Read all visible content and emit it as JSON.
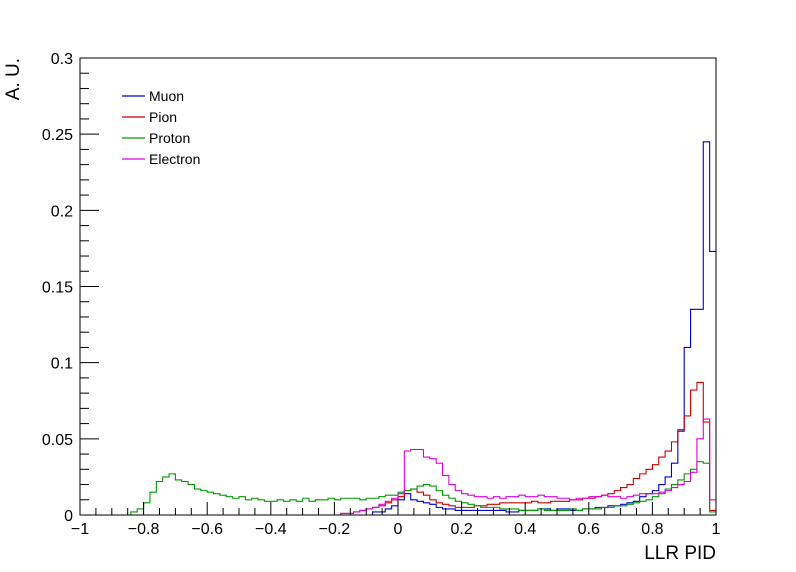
{
  "chart_data": {
    "type": "histogram",
    "xlabel": "LLR PID",
    "ylabel": "A. U.",
    "xlim": [
      -1,
      1
    ],
    "ylim": [
      0,
      0.3
    ],
    "x_ticks": [
      -1,
      -0.8,
      -0.6,
      -0.4,
      -0.2,
      0,
      0.2,
      0.4,
      0.6,
      0.8,
      1
    ],
    "x_tick_labels": [
      "−1",
      "−0.8",
      "−0.6",
      "−0.4",
      "−0.2",
      "0",
      "0.2",
      "0.4",
      "0.6",
      "0.8",
      "1"
    ],
    "y_ticks": [
      0,
      0.05,
      0.1,
      0.15,
      0.2,
      0.25,
      0.3
    ],
    "y_tick_labels": [
      "0",
      "0.05",
      "0.1",
      "0.15",
      "0.2",
      "0.25",
      "0.3"
    ],
    "legend_position": "top-left",
    "grid": false,
    "bins": 100,
    "series": [
      {
        "name": "Muon",
        "color": "#0000cc",
        "values": [
          0,
          0,
          0,
          0,
          0,
          0,
          0,
          0,
          0,
          0,
          0,
          0,
          0,
          0,
          0,
          0,
          0,
          0,
          0,
          0,
          0,
          0,
          0,
          0,
          0,
          0,
          0,
          0,
          0,
          0,
          0,
          0,
          0,
          0,
          0,
          0,
          0,
          0,
          0,
          0,
          0,
          0,
          0,
          0,
          0,
          0,
          0.002,
          0.002,
          0.004,
          0.006,
          0.01,
          0.014,
          0.01,
          0.009,
          0.008,
          0.007,
          0.005,
          0.004,
          0.004,
          0.003,
          0.003,
          0.003,
          0.003,
          0.003,
          0.003,
          0.003,
          0.003,
          0.002,
          0.002,
          0.003,
          0.003,
          0.003,
          0.004,
          0.004,
          0.003,
          0.004,
          0.004,
          0.003,
          0.003,
          0.004,
          0.004,
          0.005,
          0.005,
          0.006,
          0.006,
          0.007,
          0.008,
          0.009,
          0.012,
          0.014,
          0.016,
          0.02,
          0.025,
          0.034,
          0.055,
          0.11,
          0.135,
          0.135,
          0.245,
          0.173
        ]
      },
      {
        "name": "Pion",
        "color": "#cc0000",
        "values": [
          0,
          0,
          0,
          0,
          0,
          0,
          0,
          0,
          0,
          0,
          0,
          0,
          0,
          0,
          0,
          0,
          0,
          0,
          0,
          0,
          0,
          0,
          0,
          0,
          0,
          0,
          0,
          0,
          0,
          0,
          0,
          0,
          0,
          0,
          0,
          0,
          0,
          0,
          0,
          0,
          0,
          0.001,
          0.001,
          0.002,
          0.003,
          0.004,
          0.005,
          0.006,
          0.008,
          0.01,
          0.012,
          0.016,
          0.017,
          0.015,
          0.013,
          0.01,
          0.008,
          0.007,
          0.006,
          0.005,
          0.005,
          0.005,
          0.006,
          0.006,
          0.007,
          0.007,
          0.008,
          0.008,
          0.008,
          0.008,
          0.008,
          0.009,
          0.008,
          0.008,
          0.009,
          0.009,
          0.009,
          0.01,
          0.01,
          0.011,
          0.011,
          0.012,
          0.013,
          0.014,
          0.016,
          0.018,
          0.02,
          0.024,
          0.027,
          0.03,
          0.033,
          0.038,
          0.042,
          0.048,
          0.056,
          0.065,
          0.082,
          0.087,
          0.061,
          0.003
        ]
      },
      {
        "name": "Proton",
        "color": "#009900",
        "values": [
          0,
          0,
          0,
          0,
          0,
          0,
          0,
          0,
          0.002,
          0.004,
          0.008,
          0.015,
          0.022,
          0.025,
          0.027,
          0.023,
          0.022,
          0.02,
          0.017,
          0.016,
          0.015,
          0.014,
          0.013,
          0.012,
          0.011,
          0.012,
          0.01,
          0.011,
          0.01,
          0.009,
          0.009,
          0.01,
          0.009,
          0.01,
          0.009,
          0.011,
          0.009,
          0.01,
          0.01,
          0.011,
          0.01,
          0.011,
          0.011,
          0.011,
          0.01,
          0.011,
          0.011,
          0.012,
          0.013,
          0.013,
          0.015,
          0.016,
          0.017,
          0.019,
          0.02,
          0.019,
          0.016,
          0.013,
          0.011,
          0.009,
          0.008,
          0.007,
          0.006,
          0.005,
          0.005,
          0.005,
          0.004,
          0.004,
          0.004,
          0.003,
          0.003,
          0.003,
          0.004,
          0.003,
          0.003,
          0.003,
          0.003,
          0.004,
          0.003,
          0.004,
          0.004,
          0.004,
          0.005,
          0.005,
          0.006,
          0.006,
          0.007,
          0.008,
          0.009,
          0.01,
          0.012,
          0.014,
          0.017,
          0.02,
          0.023,
          0.027,
          0.03,
          0.035,
          0.034,
          0.002
        ]
      },
      {
        "name": "Electron",
        "color": "#dd00dd",
        "values": [
          0,
          0,
          0,
          0,
          0,
          0,
          0,
          0,
          0,
          0,
          0,
          0,
          0,
          0,
          0,
          0,
          0,
          0,
          0,
          0,
          0,
          0,
          0,
          0,
          0,
          0,
          0,
          0,
          0,
          0,
          0,
          0,
          0,
          0,
          0,
          0,
          0,
          0,
          0,
          0,
          0,
          0.001,
          0.001,
          0.002,
          0.003,
          0.004,
          0.005,
          0.007,
          0.009,
          0.011,
          0.014,
          0.042,
          0.043,
          0.043,
          0.038,
          0.037,
          0.034,
          0.026,
          0.02,
          0.016,
          0.014,
          0.013,
          0.012,
          0.012,
          0.011,
          0.012,
          0.011,
          0.012,
          0.012,
          0.013,
          0.012,
          0.012,
          0.013,
          0.012,
          0.012,
          0.011,
          0.011,
          0.01,
          0.011,
          0.011,
          0.012,
          0.012,
          0.013,
          0.012,
          0.012,
          0.011,
          0.012,
          0.013,
          0.014,
          0.014,
          0.014,
          0.015,
          0.016,
          0.018,
          0.02,
          0.022,
          0.028,
          0.05,
          0.063,
          0.01
        ]
      }
    ]
  }
}
